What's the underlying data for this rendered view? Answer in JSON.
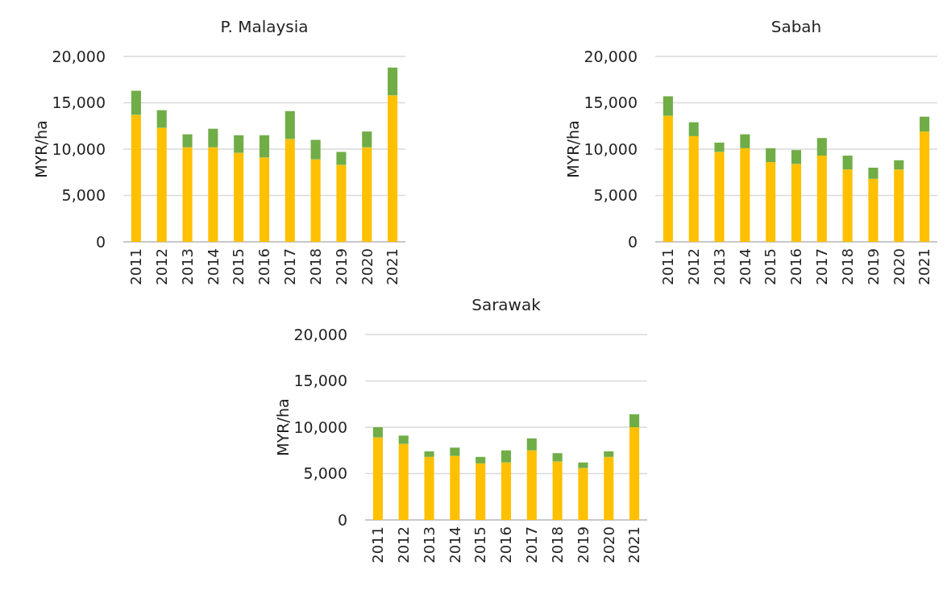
{
  "chart_data": [
    {
      "type": "bar",
      "title": "P. Malaysia",
      "ylabel": "MYR/ha",
      "stacked": true,
      "grid": "y",
      "categories": [
        "2011",
        "2012",
        "2013",
        "2014",
        "2015",
        "2016",
        "2017",
        "2018",
        "2019",
        "2020",
        "2021"
      ],
      "ylim": [
        0,
        20000
      ],
      "yticks": [
        {
          "value": 0,
          "label": "0"
        },
        {
          "value": 5000,
          "label": "5,000"
        },
        {
          "value": 10000,
          "label": "10,000"
        },
        {
          "value": 15000,
          "label": "15,000"
        },
        {
          "value": 20000,
          "label": "20,000"
        }
      ],
      "series": [
        {
          "color": "#ffc000",
          "values": [
            13700,
            12300,
            10200,
            10200,
            9600,
            9100,
            11100,
            8900,
            8300,
            10200,
            15800
          ]
        },
        {
          "color": "#70ad47",
          "values": [
            2600,
            1900,
            1400,
            2000,
            1900,
            2400,
            3000,
            2100,
            1400,
            1700,
            3000
          ]
        }
      ]
    },
    {
      "type": "bar",
      "title": "Sabah",
      "ylabel": "MYR/ha",
      "stacked": true,
      "grid": "y",
      "categories": [
        "2011",
        "2012",
        "2013",
        "2014",
        "2015",
        "2016",
        "2017",
        "2018",
        "2019",
        "2020",
        "2021"
      ],
      "ylim": [
        0,
        20000
      ],
      "yticks": [
        {
          "value": 0,
          "label": "0"
        },
        {
          "value": 5000,
          "label": "5,000"
        },
        {
          "value": 10000,
          "label": "10,000"
        },
        {
          "value": 15000,
          "label": "15,000"
        },
        {
          "value": 20000,
          "label": "20,000"
        }
      ],
      "series": [
        {
          "color": "#ffc000",
          "values": [
            13600,
            11400,
            9700,
            10100,
            8600,
            8400,
            9300,
            7800,
            6800,
            7800,
            11900
          ]
        },
        {
          "color": "#70ad47",
          "values": [
            2100,
            1500,
            1000,
            1500,
            1500,
            1500,
            1900,
            1500,
            1200,
            1000,
            1600
          ]
        }
      ]
    },
    {
      "type": "bar",
      "title": "Sarawak",
      "ylabel": "MYR/ha",
      "stacked": true,
      "grid": "y",
      "categories": [
        "2011",
        "2012",
        "2013",
        "2014",
        "2015",
        "2016",
        "2017",
        "2018",
        "2019",
        "2020",
        "2021"
      ],
      "ylim": [
        0,
        20000
      ],
      "yticks": [
        {
          "value": 0,
          "label": "0"
        },
        {
          "value": 5000,
          "label": "5,000"
        },
        {
          "value": 10000,
          "label": "10,000"
        },
        {
          "value": 15000,
          "label": "15,000"
        },
        {
          "value": 20000,
          "label": "20,000"
        }
      ],
      "series": [
        {
          "color": "#ffc000",
          "values": [
            8900,
            8200,
            6800,
            6900,
            6100,
            6200,
            7500,
            6300,
            5600,
            6800,
            10000
          ]
        },
        {
          "color": "#70ad47",
          "values": [
            1100,
            900,
            600,
            900,
            700,
            1300,
            1300,
            900,
            600,
            600,
            1400
          ]
        }
      ]
    }
  ]
}
